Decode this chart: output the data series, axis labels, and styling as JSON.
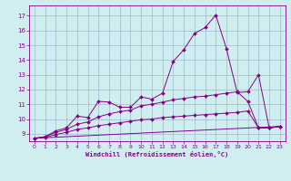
{
  "xlabel": "Windchill (Refroidissement éolien,°C)",
  "bg_color": "#d0eef0",
  "line_color": "#880088",
  "grid_color": "#99bbcc",
  "xlim": [
    -0.5,
    23.5
  ],
  "ylim": [
    8.5,
    17.7
  ],
  "xticks": [
    0,
    1,
    2,
    3,
    4,
    5,
    6,
    7,
    8,
    9,
    10,
    11,
    12,
    13,
    14,
    15,
    16,
    17,
    18,
    19,
    20,
    21,
    22,
    23
  ],
  "yticks": [
    9,
    10,
    11,
    12,
    13,
    14,
    15,
    16,
    17
  ],
  "lines": [
    {
      "x": [
        0,
        1,
        2,
        3,
        4,
        5,
        6,
        7,
        8,
        9,
        10,
        11,
        12,
        13,
        14,
        15,
        16,
        17,
        18,
        19,
        20,
        21,
        22,
        23
      ],
      "y": [
        8.7,
        8.8,
        9.2,
        9.4,
        10.2,
        10.1,
        11.2,
        11.15,
        10.8,
        10.8,
        11.5,
        11.35,
        11.75,
        13.9,
        14.7,
        15.8,
        16.2,
        17.05,
        14.75,
        11.8,
        11.85,
        13.0,
        9.4,
        9.5
      ],
      "has_markers": true
    },
    {
      "x": [
        0,
        1,
        2,
        3,
        4,
        5,
        6,
        7,
        8,
        9,
        10,
        11,
        12,
        13,
        14,
        15,
        16,
        17,
        18,
        19,
        20,
        21,
        22,
        23
      ],
      "y": [
        8.7,
        8.8,
        9.1,
        9.3,
        9.65,
        9.8,
        10.15,
        10.35,
        10.5,
        10.6,
        10.9,
        11.0,
        11.15,
        11.3,
        11.4,
        11.5,
        11.55,
        11.65,
        11.75,
        11.85,
        11.2,
        9.4,
        9.4,
        9.5
      ],
      "has_markers": true
    },
    {
      "x": [
        0,
        1,
        2,
        3,
        4,
        5,
        6,
        7,
        8,
        9,
        10,
        11,
        12,
        13,
        14,
        15,
        16,
        17,
        18,
        19,
        20,
        21,
        22,
        23
      ],
      "y": [
        8.7,
        8.75,
        8.95,
        9.1,
        9.3,
        9.4,
        9.55,
        9.65,
        9.75,
        9.85,
        9.95,
        10.0,
        10.1,
        10.15,
        10.2,
        10.25,
        10.3,
        10.35,
        10.4,
        10.45,
        10.55,
        9.4,
        9.4,
        9.5
      ],
      "has_markers": true
    },
    {
      "x": [
        0,
        23
      ],
      "y": [
        8.7,
        9.5
      ],
      "has_markers": false
    }
  ]
}
